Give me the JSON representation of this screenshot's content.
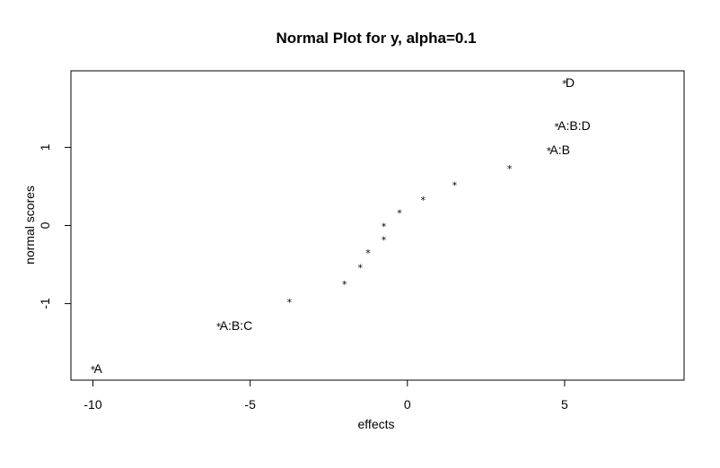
{
  "chart_data": {
    "type": "scatter",
    "title": "Normal Plot for y, alpha=0.1",
    "xlabel": "effects",
    "ylabel": "normal scores",
    "xlim": [
      -10.7,
      8.8
    ],
    "ylim": [
      -1.98,
      1.98
    ],
    "x_ticks": [
      {
        "value": -10,
        "label": "-10"
      },
      {
        "value": -5,
        "label": "-5"
      },
      {
        "value": 0,
        "label": "0"
      },
      {
        "value": 5,
        "label": "5"
      }
    ],
    "y_ticks": [
      {
        "value": -1,
        "label": "-1"
      },
      {
        "value": 0,
        "label": "0"
      },
      {
        "value": 1,
        "label": "1"
      }
    ],
    "marker": "*",
    "grid": false,
    "points": [
      {
        "x": -10.0,
        "y": -1.83,
        "label": "A"
      },
      {
        "x": -6.0,
        "y": -1.28,
        "label": "A:B:C"
      },
      {
        "x": -3.75,
        "y": -0.97,
        "label": ""
      },
      {
        "x": -2.0,
        "y": -0.74,
        "label": ""
      },
      {
        "x": -1.5,
        "y": -0.53,
        "label": ""
      },
      {
        "x": -1.25,
        "y": -0.34,
        "label": ""
      },
      {
        "x": -0.75,
        "y": -0.17,
        "label": ""
      },
      {
        "x": -0.75,
        "y": 0.0,
        "label": ""
      },
      {
        "x": -0.25,
        "y": 0.17,
        "label": ""
      },
      {
        "x": 0.5,
        "y": 0.34,
        "label": ""
      },
      {
        "x": 1.5,
        "y": 0.53,
        "label": ""
      },
      {
        "x": 3.25,
        "y": 0.74,
        "label": ""
      },
      {
        "x": 4.5,
        "y": 0.97,
        "label": "A:B"
      },
      {
        "x": 4.75,
        "y": 1.28,
        "label": "A:B:D"
      },
      {
        "x": 5.0,
        "y": 1.83,
        "label": "D"
      }
    ]
  }
}
